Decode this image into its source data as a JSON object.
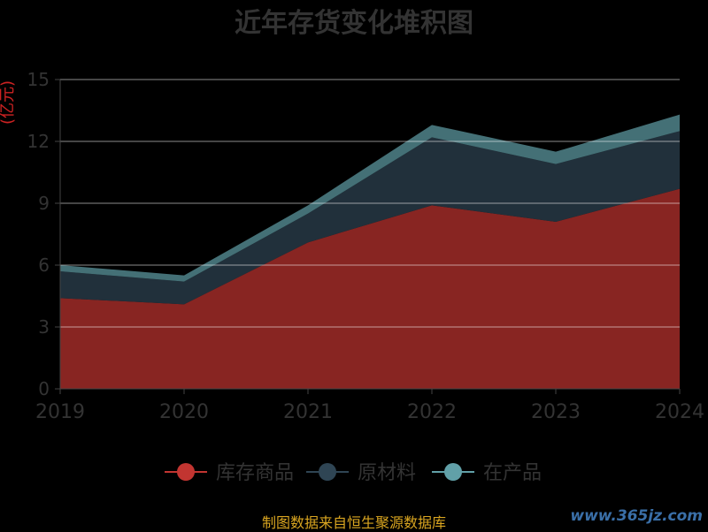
{
  "chart_data": {
    "type": "area",
    "title": "近年存货变化堆积图",
    "ylabel": "(亿元)",
    "categories": [
      "2019",
      "2020",
      "2021",
      "2022",
      "2023",
      "2024"
    ],
    "ylim": [
      0,
      15
    ],
    "yticks": [
      0,
      3,
      6,
      9,
      12,
      15
    ],
    "grid": true,
    "stacked": true,
    "legend_position": "bottom",
    "series": [
      {
        "name": "库存商品",
        "values": [
          4.4,
          4.1,
          7.1,
          8.9,
          8.1,
          9.7
        ],
        "color": "#c23531"
      },
      {
        "name": "原材料",
        "values": [
          1.3,
          1.1,
          1.4,
          3.3,
          2.8,
          2.8
        ],
        "color": "#2f4554"
      },
      {
        "name": "在产品",
        "values": [
          0.3,
          0.3,
          0.4,
          0.6,
          0.6,
          0.8
        ],
        "color": "#61a0a8"
      }
    ]
  },
  "footer": {
    "source_text": "制图数据来自恒生聚源数据库",
    "watermark": "www.365jz.com"
  }
}
